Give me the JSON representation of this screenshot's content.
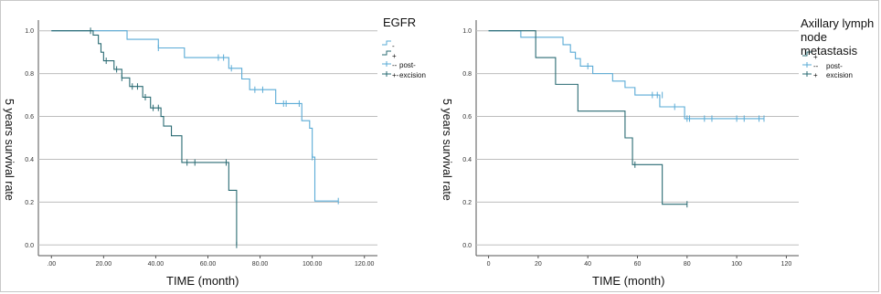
{
  "chart_data": [
    {
      "type": "line",
      "title": "",
      "xlabel": "TIME (month)",
      "ylabel": "5 years survival rate",
      "xlim": [
        -5,
        125
      ],
      "ylim": [
        -0.05,
        1.05
      ],
      "xticks": [
        ".00",
        "20.00",
        "40.00",
        "60.00",
        "80.00",
        "100.00",
        "120.00"
      ],
      "xtick_values": [
        0,
        20,
        40,
        60,
        80,
        100,
        120
      ],
      "yticks": [
        "0.0",
        "0.2",
        "0.4",
        "0.6",
        "0.8",
        "1.0"
      ],
      "ytick_values": [
        0,
        0.2,
        0.4,
        0.6,
        0.8,
        1.0
      ],
      "grid": "horizontal",
      "legend": {
        "title": "EGFR",
        "entries": [
          "-",
          "+",
          "--",
          "+-"
        ],
        "extra_label": [
          "post-",
          "excision"
        ],
        "placement": "right"
      },
      "series": [
        {
          "name": "-",
          "color": "#5aabd6",
          "steps": [
            [
              0,
              1.0
            ],
            [
              29,
              0.96
            ],
            [
              41,
              0.92
            ],
            [
              51,
              0.875
            ],
            [
              68,
              0.825
            ],
            [
              73,
              0.775
            ],
            [
              76,
              0.725
            ],
            [
              86,
              0.66
            ],
            [
              96,
              0.58
            ],
            [
              99,
              0.545
            ],
            [
              100,
              0.41
            ],
            [
              101,
              0.205
            ],
            [
              110,
              0.205
            ]
          ],
          "censored": [
            [
              41,
              0.92
            ],
            [
              64,
              0.875
            ],
            [
              66,
              0.875
            ],
            [
              69,
              0.825
            ],
            [
              78,
              0.725
            ],
            [
              81,
              0.725
            ],
            [
              89,
              0.66
            ],
            [
              90,
              0.66
            ],
            [
              95,
              0.66
            ],
            [
              100,
              0.41
            ],
            [
              110,
              0.205
            ]
          ]
        },
        {
          "name": "+",
          "color": "#2a6b73",
          "steps": [
            [
              0,
              1.0
            ],
            [
              16,
              0.98
            ],
            [
              18,
              0.94
            ],
            [
              19,
              0.9
            ],
            [
              20,
              0.86
            ],
            [
              24,
              0.82
            ],
            [
              27,
              0.78
            ],
            [
              30,
              0.74
            ],
            [
              35,
              0.69
            ],
            [
              38,
              0.64
            ],
            [
              42,
              0.6
            ],
            [
              43,
              0.555
            ],
            [
              46,
              0.51
            ],
            [
              50,
              0.385
            ],
            [
              67,
              0.385
            ],
            [
              68,
              0.255
            ],
            [
              71,
              0.255
            ],
            [
              71,
              0.0
            ]
          ],
          "censored": [
            [
              15,
              1.0
            ],
            [
              21,
              0.86
            ],
            [
              25,
              0.82
            ],
            [
              27,
              0.78
            ],
            [
              31,
              0.74
            ],
            [
              33,
              0.74
            ],
            [
              36,
              0.69
            ],
            [
              39,
              0.64
            ],
            [
              41,
              0.64
            ],
            [
              52,
              0.385
            ],
            [
              55,
              0.385
            ],
            [
              67,
              0.385
            ],
            [
              71,
              0.0
            ]
          ]
        }
      ]
    },
    {
      "type": "line",
      "title": "",
      "xlabel": "TIME (month)",
      "ylabel": "5 years survival rate",
      "xlim": [
        -5,
        125
      ],
      "ylim": [
        -0.05,
        1.05
      ],
      "xticks": [
        "0",
        "20",
        "40",
        "60",
        "80",
        "100",
        "120"
      ],
      "xtick_values": [
        0,
        20,
        40,
        60,
        80,
        100,
        120
      ],
      "yticks": [
        "0.0",
        "0.2",
        "0.4",
        "0.6",
        "0.8",
        "1.0"
      ],
      "ytick_values": [
        0,
        0.2,
        0.4,
        0.6,
        0.8,
        1.0
      ],
      "grid": "horizontal",
      "legend": {
        "title": [
          "Axillary lymph",
          "node metastasis"
        ],
        "entries": [
          "+",
          "--",
          "+"
        ],
        "extra_label": [
          "post-",
          "excision"
        ],
        "placement": "right"
      },
      "series": [
        {
          "name": "-",
          "color": "#5aabd6",
          "steps": [
            [
              0,
              1.0
            ],
            [
              13,
              0.97
            ],
            [
              30,
              0.935
            ],
            [
              33,
              0.9
            ],
            [
              35,
              0.87
            ],
            [
              37,
              0.835
            ],
            [
              42,
              0.8
            ],
            [
              50,
              0.765
            ],
            [
              55,
              0.735
            ],
            [
              59,
              0.7
            ],
            [
              69,
              0.645
            ],
            [
              79,
              0.59
            ],
            [
              80,
              0.59
            ],
            [
              111,
              0.59
            ]
          ],
          "censored": [
            [
              40,
              0.835
            ],
            [
              66,
              0.7
            ],
            [
              68,
              0.7
            ],
            [
              70,
              0.7
            ],
            [
              75,
              0.645
            ],
            [
              80,
              0.59
            ],
            [
              81,
              0.59
            ],
            [
              87,
              0.59
            ],
            [
              90,
              0.59
            ],
            [
              100,
              0.59
            ],
            [
              103,
              0.59
            ],
            [
              109,
              0.59
            ],
            [
              111,
              0.59
            ]
          ]
        },
        {
          "name": "+",
          "color": "#2a6b73",
          "steps": [
            [
              0,
              1.0
            ],
            [
              19,
              1.0
            ],
            [
              19,
              0.875
            ],
            [
              27,
              0.875
            ],
            [
              27,
              0.75
            ],
            [
              36,
              0.75
            ],
            [
              36,
              0.625
            ],
            [
              55,
              0.625
            ],
            [
              55,
              0.5
            ],
            [
              58,
              0.5
            ],
            [
              58,
              0.375
            ],
            [
              70,
              0.375
            ],
            [
              70,
              0.19
            ],
            [
              80,
              0.19
            ]
          ],
          "censored": [
            [
              59,
              0.375
            ],
            [
              80,
              0.19
            ]
          ]
        }
      ]
    }
  ]
}
